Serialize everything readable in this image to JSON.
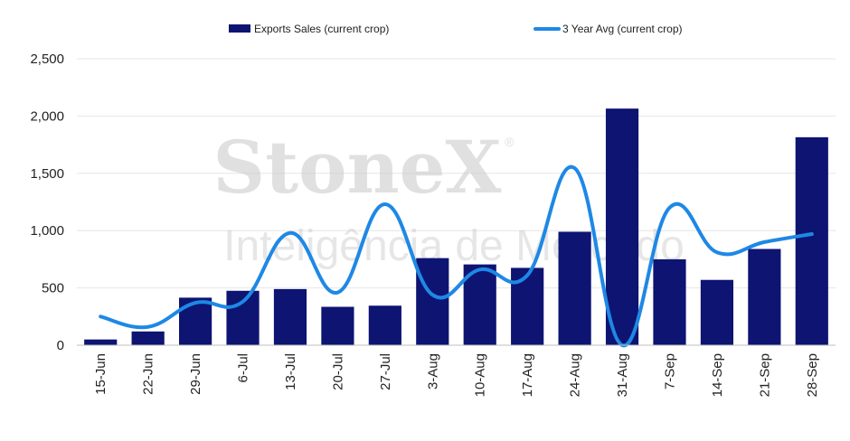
{
  "chart_data": {
    "type": "bar",
    "categories": [
      "15-Jun",
      "22-Jun",
      "29-Jun",
      "6-Jul",
      "13-Jul",
      "20-Jul",
      "27-Jul",
      "3-Aug",
      "10-Aug",
      "17-Aug",
      "24-Aug",
      "31-Aug",
      "7-Sep",
      "14-Sep",
      "21-Sep",
      "28-Sep"
    ],
    "series": [
      {
        "name": "Exports Sales (current crop)",
        "kind": "bar",
        "color": "#0d1472",
        "values": [
          50,
          120,
          415,
          475,
          490,
          335,
          345,
          760,
          705,
          675,
          990,
          2065,
          750,
          570,
          840,
          1815
        ]
      },
      {
        "name": "3 Year Avg (current crop)",
        "kind": "line",
        "color": "#1e88e5",
        "values": [
          250,
          160,
          370,
          380,
          980,
          460,
          1230,
          440,
          660,
          610,
          1545,
          0,
          1200,
          810,
          900,
          970
        ]
      }
    ],
    "ylim": [
      0,
      2500
    ],
    "yticks": [
      "0",
      "500",
      "1,000",
      "1,500",
      "2,000",
      "2,500"
    ],
    "ytick_values": [
      0,
      500,
      1000,
      1500,
      2000,
      2500
    ],
    "grid": true,
    "legend_position": "top",
    "xlabel": "",
    "ylabel": "",
    "title": ""
  },
  "watermark": {
    "main": "StoneX",
    "registered": "®",
    "sub": "Inteligência de Mercado"
  }
}
